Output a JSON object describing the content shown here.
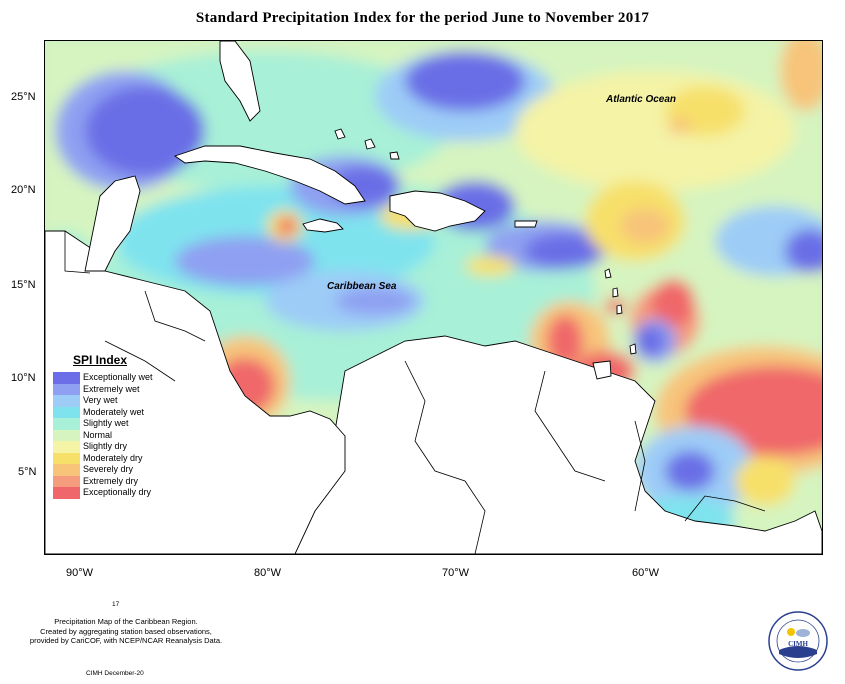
{
  "title": "Standard Precipitation Index for the period June to November 2017",
  "lat_labels": [
    "25°N",
    "20°N",
    "15°N",
    "10°N",
    "5°N"
  ],
  "lon_labels": [
    "90°W",
    "80°W",
    "70°W",
    "60°W"
  ],
  "ocean_labels": {
    "atlantic": "Atlantic Ocean",
    "caribbean": "Caribbean Sea"
  },
  "legend": {
    "title": "SPI Index",
    "items": [
      {
        "label": "Exceptionally wet",
        "color": "#6b6ee6"
      },
      {
        "label": "Extremely wet",
        "color": "#8fa0f2"
      },
      {
        "label": "Very wet",
        "color": "#9dccf7"
      },
      {
        "label": "Moderately wet",
        "color": "#7fe3ee"
      },
      {
        "label": "Slightly wet",
        "color": "#a8f0d7"
      },
      {
        "label": "Normal",
        "color": "#d6f4c0"
      },
      {
        "label": "Slightly dry",
        "color": "#f4f3a6"
      },
      {
        "label": "Moderately dry",
        "color": "#f7e06a"
      },
      {
        "label": "Severely dry",
        "color": "#f7c47a"
      },
      {
        "label": "Extremely dry",
        "color": "#f59b7e"
      },
      {
        "label": "Exceptionally dry",
        "color": "#f0676b"
      }
    ]
  },
  "footnote": {
    "number": "17",
    "lines": [
      "Precipitation Map of the Caribbean Region.",
      "Created by aggregating station based observations,",
      "provided by CariCOF, with NCEP/NCAR Reanalysis Data."
    ],
    "credit": "CIMH December-20"
  },
  "logo": {
    "text": "CIMH",
    "color": "#2b3f8f"
  }
}
